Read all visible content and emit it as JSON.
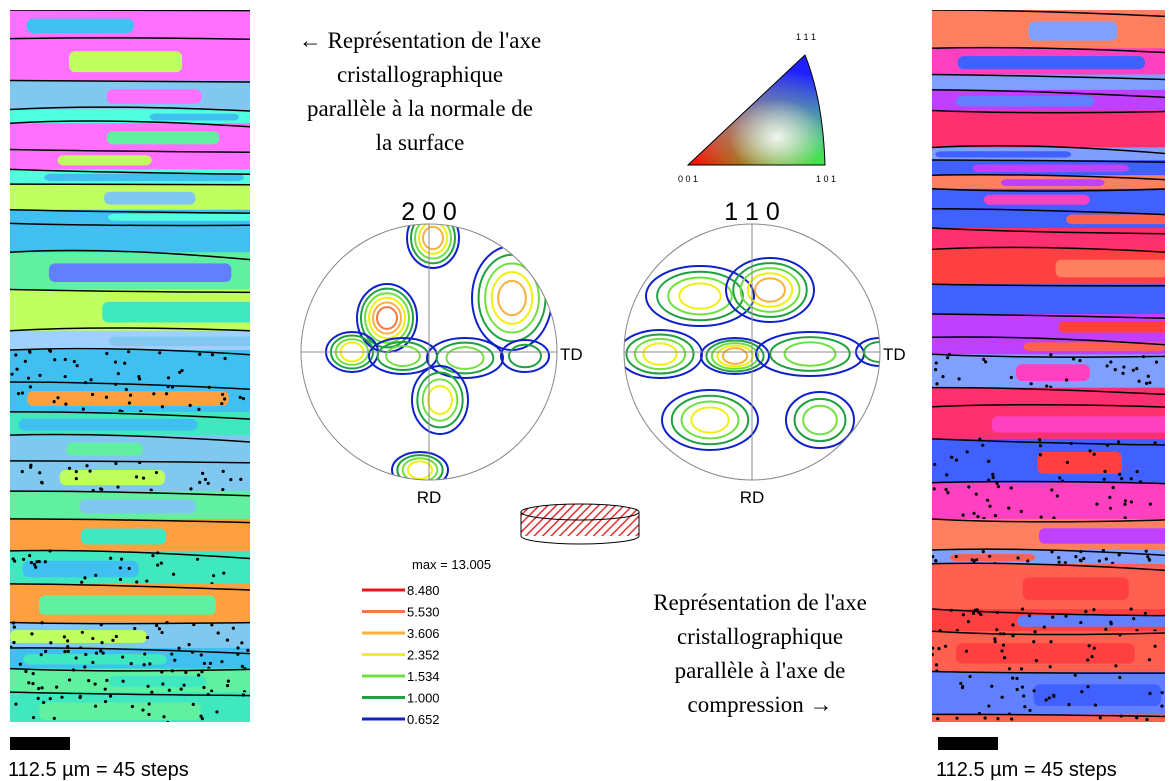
{
  "caption_top": {
    "lines": [
      "← Représentation de l'axe",
      "cristallographique",
      "parallèle à la normale de",
      "la surface"
    ]
  },
  "caption_bottom": {
    "lines": [
      "Représentation de l'axe",
      "cristallographique",
      "parallèle à l'axe de",
      "compression →"
    ]
  },
  "color_key": {
    "top": "1 1 1",
    "left": "0 0 1",
    "right": "1 0 1"
  },
  "pole_figures": [
    {
      "title": "2 0 0",
      "right_label": "TD",
      "bottom_label": "RD"
    },
    {
      "title": "1 1 0",
      "right_label": "TD",
      "bottom_label": "RD"
    }
  ],
  "legend": {
    "max": "max = 13.005",
    "levels": [
      {
        "label": "8.480",
        "color": "#e8141c"
      },
      {
        "label": "5.530",
        "color": "#f07848"
      },
      {
        "label": "3.606",
        "color": "#f8b040"
      },
      {
        "label": "2.352",
        "color": "#f0f010"
      },
      {
        "label": "1.534",
        "color": "#70e040"
      },
      {
        "label": "1.000",
        "color": "#20a040"
      },
      {
        "label": "0.652",
        "color": "#1020c8"
      }
    ]
  },
  "maps": [
    {
      "scale": "112.5 µm = 45 steps"
    },
    {
      "scale": "112.5 µm = 45 steps"
    }
  ]
}
